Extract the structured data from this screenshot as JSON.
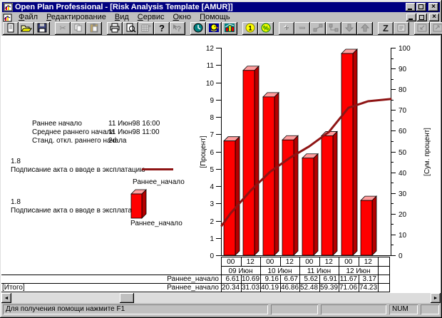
{
  "titlebar": {
    "title": "Open Plan Professional - [Risk Analysis Template [AMUR]]"
  },
  "menubar": {
    "items": [
      "Файл",
      "Редактирование",
      "Вид",
      "Сервис",
      "Окно",
      "Помощь"
    ]
  },
  "toolbar": {
    "buttons": [
      {
        "name": "new-document",
        "group": 1,
        "enabled": true
      },
      {
        "name": "open-file",
        "group": 1,
        "enabled": true
      },
      {
        "name": "save-file",
        "group": 1,
        "enabled": true
      },
      {
        "name": "cut",
        "group": 2,
        "enabled": false
      },
      {
        "name": "copy",
        "group": 2,
        "enabled": false
      },
      {
        "name": "paste",
        "group": 2,
        "enabled": false
      },
      {
        "name": "print",
        "group": 3,
        "enabled": true
      },
      {
        "name": "print-preview",
        "group": 3,
        "enabled": true
      },
      {
        "name": "insert-table",
        "group": 3,
        "enabled": false
      },
      {
        "name": "help",
        "group": 3,
        "enabled": true
      },
      {
        "name": "context-help",
        "group": 3,
        "enabled": false
      },
      {
        "name": "time-analysis",
        "group": 4,
        "enabled": true
      },
      {
        "name": "resource-analysis",
        "group": 4,
        "enabled": true
      },
      {
        "name": "risk-analysis",
        "group": 4,
        "enabled": true
      },
      {
        "name": "cost-analysis",
        "group": 5,
        "enabled": true
      },
      {
        "name": "percent-complete",
        "group": 5,
        "enabled": true
      },
      {
        "name": "add-activity",
        "group": 6,
        "enabled": false
      },
      {
        "name": "delete-activity",
        "group": 6,
        "enabled": false
      },
      {
        "name": "link-activities",
        "group": 6,
        "enabled": false
      },
      {
        "name": "unlink-activities",
        "group": 6,
        "enabled": false
      },
      {
        "name": "move-down",
        "group": 6,
        "enabled": false
      },
      {
        "name": "move-up",
        "group": 6,
        "enabled": false
      },
      {
        "name": "zoom",
        "group": 7,
        "enabled": true
      },
      {
        "name": "notes",
        "group": 7,
        "enabled": false
      },
      {
        "name": "shrink-window",
        "group": 8,
        "enabled": false
      },
      {
        "name": "expand-window",
        "group": 8,
        "enabled": false
      }
    ]
  },
  "stats": {
    "rows": [
      {
        "label": "Раннее начало",
        "value": "11 Июн98 16:00"
      },
      {
        "label": "Среднее раннего начала",
        "value": "11 Июн98 11:00"
      },
      {
        "label": "Станд. откл.  раннего начала",
        "value": "2d"
      }
    ]
  },
  "legends": [
    {
      "value": "1.8",
      "label": "Подписание акта о вводе в эксплатацию",
      "series": "Раннее_начало",
      "marker": "line"
    },
    {
      "value": "1.8",
      "label": "Подписание акта о вводе в эксплатацию",
      "series": "Раннее_начало",
      "marker": "bar"
    }
  ],
  "chart_data": {
    "type": "bar",
    "x_time_labels": [
      "00",
      "12",
      "00",
      "12",
      "00",
      "12",
      "00",
      "12"
    ],
    "x_date_groups": [
      "09 Июн",
      "10 Июн",
      "11 Июн",
      "12 Июн"
    ],
    "series": [
      {
        "name": "Раннее_начало",
        "type": "bar",
        "axis": "left",
        "values": [
          6.61,
          10.69,
          9.16,
          6.67,
          5.62,
          6.91,
          11.67,
          3.17
        ]
      },
      {
        "name": "Раннее_начало",
        "type": "line",
        "axis": "right",
        "values": [
          20.34,
          31.03,
          40.19,
          46.86,
          52.48,
          59.39,
          71.06,
          74.23
        ]
      }
    ],
    "line_extends": {
      "start_pct": 14.3,
      "end_pct": 75.3
    },
    "ylabel_left": "[Процент]",
    "ylabel_right": "[Сум. процент]",
    "ylim_left": [
      0,
      12
    ],
    "ylim_right": [
      0,
      100
    ],
    "yticks_left": [
      0,
      1,
      2,
      3,
      4,
      5,
      6,
      7,
      8,
      9,
      10,
      11,
      12
    ],
    "yticks_right": [
      0,
      10,
      20,
      30,
      40,
      50,
      60,
      70,
      80,
      90,
      100
    ],
    "colors": {
      "bar_front": "#ff0000",
      "bar_top": "#ff9d9d",
      "bar_side": "#b40000",
      "line": "#8e1414"
    }
  },
  "table": {
    "row1_series": "Раннее_начало",
    "row2_label": "[Итого]",
    "row2_series": "Раннее_начало"
  },
  "statusbar": {
    "help_text": "Для получения помощи нажмите F1",
    "num_indicator": "NUM"
  }
}
